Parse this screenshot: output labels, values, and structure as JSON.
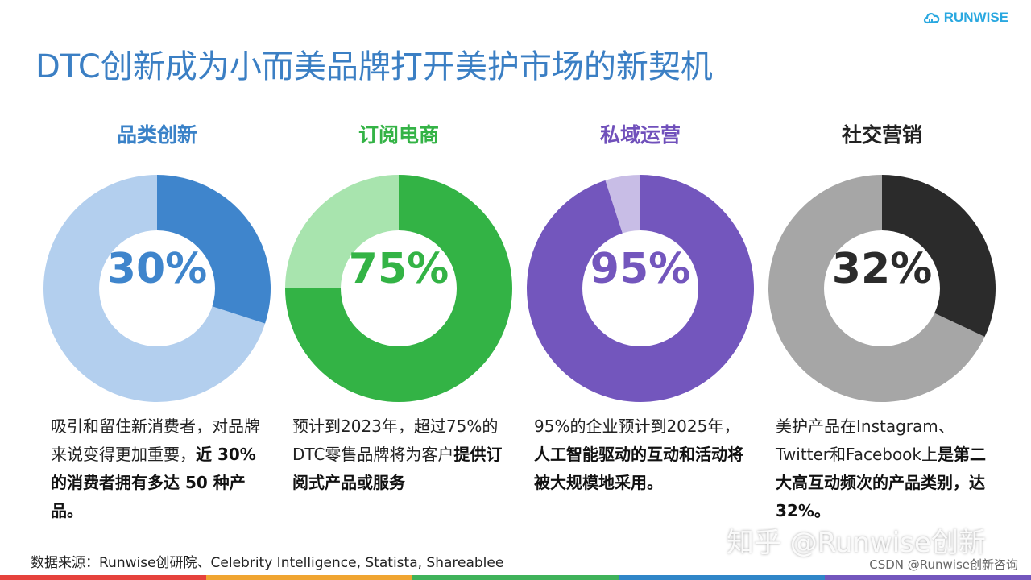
{
  "brand": {
    "name": "RUNWISE"
  },
  "title": "DTC创新成为小而美品牌打开美护市场的新契机",
  "chart_data": [
    {
      "type": "pie",
      "title": "品类创新",
      "value": 30,
      "label": "30%",
      "colors": {
        "main": "#3f85cc",
        "rest": "#b3cfee",
        "title": "#3a82c8"
      },
      "description": [
        {
          "text": "吸引和留住新消费者，",
          "bold": false
        },
        {
          "text": "对品牌来说变得更加",
          "bold": false
        },
        {
          "text": "重要，",
          "bold": false
        },
        {
          "text": "近 30% 的消费",
          "bold": true
        },
        {
          "text": "者拥有多达 50 种产品。",
          "bold": true
        }
      ]
    },
    {
      "type": "pie",
      "title": "订阅电商",
      "value": 75,
      "label": "75%",
      "colors": {
        "main": "#33b345",
        "rest": "#a8e4ae",
        "title": "#34b346"
      },
      "description": [
        {
          "text": "预计到2023年，超过",
          "bold": false
        },
        {
          "text": "75%的DTC零售品牌",
          "bold": false
        },
        {
          "text": "将为客户",
          "bold": false
        },
        {
          "text": "提供订阅式",
          "bold": true
        },
        {
          "text": "产品或服务",
          "bold": true
        }
      ]
    },
    {
      "type": "pie",
      "title": "私域运营",
      "value": 95,
      "label": "95%",
      "colors": {
        "main": "#7356bd",
        "rest": "#c8bde6",
        "title": "#7050bb"
      },
      "description": [
        {
          "text": "95%的企业预计到",
          "bold": false
        },
        {
          "text": "2025年，",
          "bold": false
        },
        {
          "text": "人工智能驱",
          "bold": true
        },
        {
          "text": "动的互动和活动将被",
          "bold": true
        },
        {
          "text": "大规模地采用。",
          "bold": true
        }
      ]
    },
    {
      "type": "pie",
      "title": "社交营销",
      "value": 32,
      "label": "32%",
      "colors": {
        "main": "#2b2b2b",
        "rest": "#a6a6a6",
        "title": "#222222"
      },
      "description": [
        {
          "text": "美护产品在Instagram、",
          "bold": false
        },
        {
          "text": "Twitter和Facebook上",
          "bold": false
        },
        {
          "text": "是第二大高互动频次",
          "bold": true
        },
        {
          "text": "的产品类别，达32%。",
          "bold": true
        }
      ]
    }
  ],
  "source": "数据来源：Runwise创研院、Celebrity Intelligence, Statista, Shareablee",
  "watermark": "知乎 @Runwise创新",
  "csdn": "CSDN @Runwise创新咨询",
  "footer_colors": [
    "#e6423c",
    "#f0a531",
    "#3fb25a",
    "#2f86c8",
    "#7356bd"
  ]
}
